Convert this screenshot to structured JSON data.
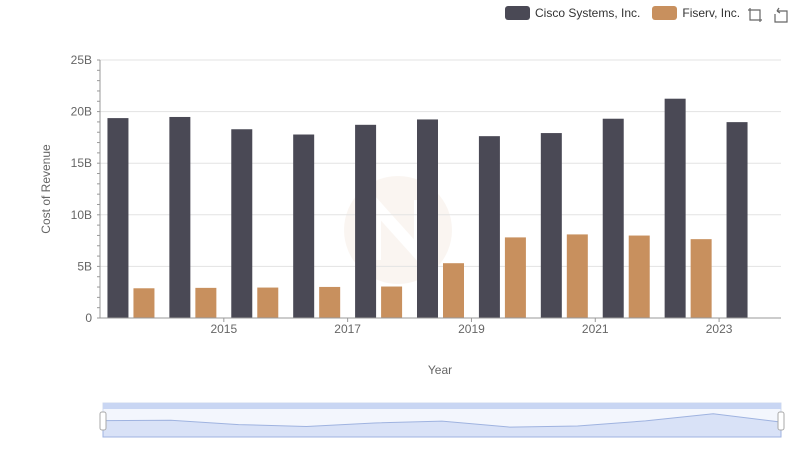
{
  "legend": {
    "items": [
      {
        "label": "Cisco Systems, Inc.",
        "color": "#4a4955"
      },
      {
        "label": "Fiserv, Inc.",
        "color": "#c8905e"
      }
    ]
  },
  "toolbox": {
    "icons": [
      "zoom-icon",
      "restore-icon"
    ]
  },
  "chart_data": {
    "type": "bar",
    "title": "",
    "xlabel": "Year",
    "ylabel": "Cost of Revenue",
    "x": [
      2014,
      2015,
      2016,
      2017,
      2018,
      2019,
      2020,
      2021,
      2022,
      2023,
      2024
    ],
    "x_tick_labels": [
      "2015",
      "2017",
      "2019",
      "2021",
      "2023"
    ],
    "y_tick_labels": [
      "0",
      "5B",
      "10B",
      "15B",
      "20B",
      "25B"
    ],
    "ylim": [
      0,
      25000000000
    ],
    "grid": true,
    "legend_position": "top-right",
    "series": [
      {
        "name": "Cisco Systems, Inc.",
        "color": "#4a4955",
        "values": [
          19370000000,
          19480000000,
          18290000000,
          17780000000,
          18720000000,
          19240000000,
          17620000000,
          17920000000,
          19310000000,
          21250000000,
          18980000000
        ]
      },
      {
        "name": "Fiserv, Inc.",
        "color": "#c8905e",
        "values": [
          2880000000,
          2920000000,
          2950000000,
          3010000000,
          3050000000,
          5310000000,
          7810000000,
          8100000000,
          7990000000,
          7640000000,
          null
        ]
      }
    ]
  }
}
